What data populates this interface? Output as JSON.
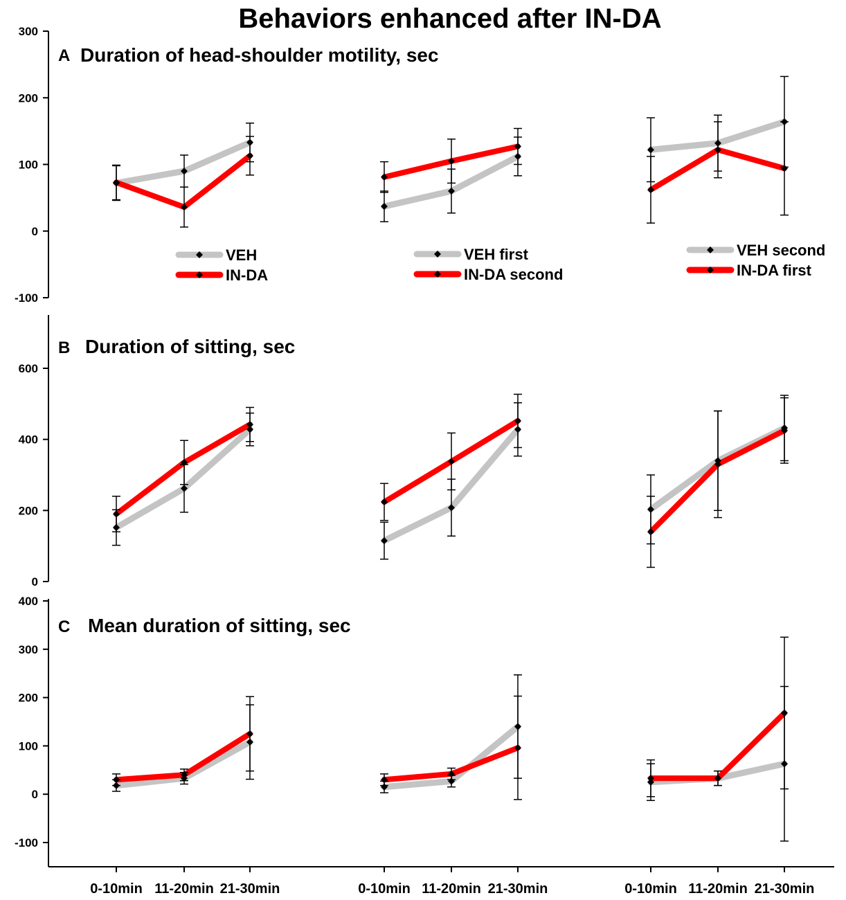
{
  "title": "Behaviors enhanced after IN-DA",
  "colors": {
    "veh": "#c4c4c4",
    "inda": "#ff0000",
    "marker": "#000000",
    "axis": "#000000"
  },
  "x_categories": [
    "0-10min",
    "11-20min",
    "21-30min"
  ],
  "chart_data": [
    {
      "type": "line",
      "panel": "A",
      "title": "Duration of head-shoulder motility, sec",
      "ylabel": "",
      "ylim": [
        -100,
        300
      ],
      "yticks": [
        "-100",
        "0",
        "100",
        "200",
        "300"
      ],
      "groups": [
        {
          "legend_position": "bottom-left",
          "series": [
            {
              "name": "VEH",
              "color": "#c4c4c4",
              "values": [
                72,
                90,
                133
              ],
              "error": [
                26,
                24,
                29
              ]
            },
            {
              "name": "IN-DA",
              "color": "#ff0000",
              "values": [
                73,
                36,
                113
              ],
              "error": [
                26,
                30,
                29
              ]
            }
          ]
        },
        {
          "legend_position": "bottom-center",
          "series": [
            {
              "name": "VEH first",
              "color": "#c4c4c4",
              "values": [
                37,
                60,
                112
              ],
              "error": [
                23,
                33,
                29
              ]
            },
            {
              "name": "IN-DA second",
              "color": "#ff0000",
              "values": [
                81,
                105,
                127
              ],
              "error": [
                23,
                33,
                27
              ]
            }
          ]
        },
        {
          "legend_position": "bottom-right",
          "series": [
            {
              "name": "VEH second",
              "color": "#c4c4c4",
              "values": [
                122,
                132,
                164
              ],
              "error": [
                48,
                42,
                68
              ]
            },
            {
              "name": "IN-DA first",
              "color": "#ff0000",
              "values": [
                62,
                122,
                94
              ],
              "error": [
                50,
                42,
                70
              ]
            }
          ]
        }
      ]
    },
    {
      "type": "line",
      "panel": "B",
      "title": "Duration of sitting, sec",
      "ylabel": "",
      "ylim": [
        0,
        750
      ],
      "yticks": [
        "0",
        "200",
        "400",
        "600"
      ],
      "groups": [
        {
          "series": [
            {
              "name": "VEH",
              "color": "#c4c4c4",
              "values": [
                152,
                262,
                428
              ],
              "error": [
                50,
                67,
                46
              ]
            },
            {
              "name": "IN-DA",
              "color": "#ff0000",
              "values": [
                190,
                335,
                442
              ],
              "error": [
                50,
                62,
                48
              ]
            }
          ]
        },
        {
          "series": [
            {
              "name": "VEH first",
              "color": "#c4c4c4",
              "values": [
                115,
                208,
                428
              ],
              "error": [
                52,
                80,
                75
              ]
            },
            {
              "name": "IN-DA second",
              "color": "#ff0000",
              "values": [
                224,
                338,
                452
              ],
              "error": [
                52,
                80,
                75
              ]
            }
          ]
        },
        {
          "series": [
            {
              "name": "VEH second",
              "color": "#c4c4c4",
              "values": [
                203,
                340,
                432
              ],
              "error": [
                97,
                140,
                92
              ]
            },
            {
              "name": "IN-DA first",
              "color": "#ff0000",
              "values": [
                140,
                330,
                425
              ],
              "error": [
                100,
                150,
                92
              ]
            }
          ]
        }
      ]
    },
    {
      "type": "line",
      "panel": "C",
      "title": "Mean duration of sitting, sec",
      "ylabel": "",
      "ylim": [
        -150,
        400
      ],
      "yticks": [
        "-100",
        "0",
        "100",
        "200",
        "300",
        "400"
      ],
      "groups": [
        {
          "series": [
            {
              "name": "VEH",
              "color": "#c4c4c4",
              "values": [
                18,
                33,
                108
              ],
              "error": [
                12,
                12,
                77
              ]
            },
            {
              "name": "IN-DA",
              "color": "#ff0000",
              "values": [
                30,
                40,
                125
              ],
              "error": [
                12,
                12,
                77
              ]
            }
          ]
        },
        {
          "series": [
            {
              "name": "VEH first",
              "color": "#c4c4c4",
              "values": [
                15,
                27,
                140
              ],
              "error": [
                12,
                12,
                107
              ]
            },
            {
              "name": "IN-DA second",
              "color": "#ff0000",
              "values": [
                30,
                42,
                96
              ],
              "error": [
                12,
                12,
                107
              ]
            }
          ]
        },
        {
          "series": [
            {
              "name": "VEH second",
              "color": "#c4c4c4",
              "values": [
                25,
                33,
                63
              ],
              "error": [
                38,
                15,
                160
              ]
            },
            {
              "name": "IN-DA first",
              "color": "#ff0000",
              "values": [
                33,
                33,
                168
              ],
              "error": [
                38,
                15,
                157
              ]
            }
          ]
        }
      ]
    }
  ]
}
